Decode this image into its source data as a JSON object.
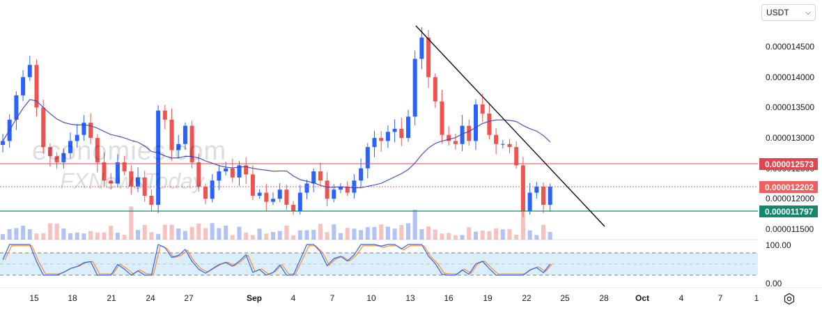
{
  "selector": {
    "currency": "USDT"
  },
  "watermark": {
    "line1": "economies.com",
    "line2": "FXNewsToday"
  },
  "colors": {
    "up": "#2962ff",
    "down": "#ef5350",
    "ma": "#3a44c8",
    "resistance": "#e0474c",
    "support": "#13876b",
    "current": "#f05e5e",
    "trend": "#000000",
    "stoch_k": "#2962ff",
    "stoch_d": "#ff8c1a",
    "stoch_band": "#dbeefb"
  },
  "price_axis": {
    "ticks": [
      "0.000014500",
      "0.000014000",
      "0.000013500",
      "0.000013000",
      "0.000012500",
      "0.000012000",
      "0.000011500"
    ]
  },
  "price_tags": {
    "resistance": "0.000012573",
    "current": "0.000012202",
    "support": "0.000011797"
  },
  "stoch_axis": {
    "ticks": [
      "100.00",
      "0.00"
    ]
  },
  "time_axis": {
    "ticks": [
      "15",
      "18",
      "21",
      "24",
      "27",
      "Sep",
      "4",
      "7",
      "10",
      "13",
      "16",
      "19",
      "22",
      "25",
      "28",
      "Oct",
      "4",
      "7",
      "1"
    ]
  },
  "chart_data": {
    "type": "candlestick",
    "y_unit": "USDT",
    "ylim": [
      1.13e-05,
      1.49e-05
    ],
    "levels": {
      "resistance": 1.2573e-05,
      "current": 1.2202e-05,
      "support": 1.1797e-05
    },
    "trendline": {
      "from": [
        "Sep 13",
        1.48e-05
      ],
      "to": [
        "Sep 27",
        1.14e-05
      ]
    },
    "indicator": {
      "name": "Stochastic",
      "range": [
        0,
        100
      ],
      "overbought": 80,
      "oversold": 20
    },
    "series": [
      {
        "values": [
          12.95,
          13.3,
          13.7,
          14.0,
          14.2,
          13.5,
          12.85,
          12.7,
          12.6,
          12.75,
          12.95,
          13.05,
          13.25,
          13.0,
          12.6,
          12.3,
          12.25,
          12.6,
          12.45,
          12.2,
          12.35,
          12.05,
          11.9,
          13.45,
          13.3,
          12.8,
          12.9,
          13.2,
          12.6,
          12.2,
          12.0,
          12.3,
          12.45,
          12.5,
          12.35,
          12.55,
          12.4,
          12.05,
          12.1,
          11.95,
          12.0,
          12.15,
          11.9,
          11.8,
          12.1,
          12.25,
          12.45,
          12.3,
          12.0,
          12.15,
          12.2,
          12.1,
          12.3,
          12.5,
          12.85,
          13.0,
          12.95,
          13.1,
          13.15,
          13.0,
          13.35,
          14.3,
          14.65,
          14.0,
          13.6,
          13.05,
          12.95,
          12.9,
          13.2,
          12.95,
          13.55,
          13.4,
          13.05,
          12.9,
          12.9,
          12.85,
          12.55,
          11.8,
          12.1,
          12.2,
          11.9,
          12.2
        ]
      }
    ]
  }
}
